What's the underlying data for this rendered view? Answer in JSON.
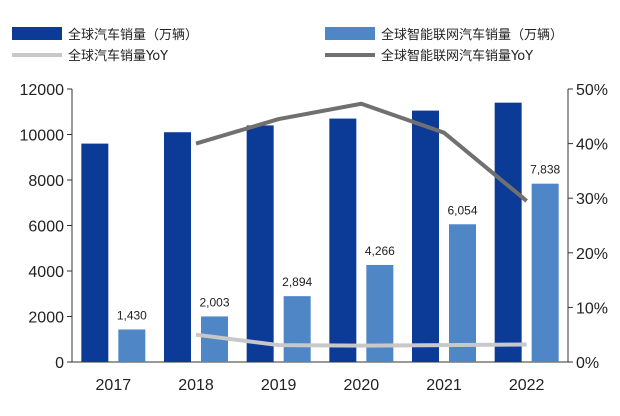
{
  "chart_data": {
    "type": "bar+line",
    "categories": [
      "2017",
      "2018",
      "2019",
      "2020",
      "2021",
      "2022"
    ],
    "series": [
      {
        "name": "全球汽车销量（万辆）",
        "kind": "bar",
        "axis": "left",
        "color": "#0b3b97",
        "values": [
          9600,
          10100,
          10400,
          10700,
          11050,
          11400
        ]
      },
      {
        "name": "全球智能联网汽车销量（万辆）",
        "kind": "bar",
        "axis": "left",
        "color": "#4f86c6",
        "values": [
          1430,
          2003,
          2894,
          4266,
          6054,
          7838
        ],
        "labels": [
          "1,430",
          "2,003",
          "2,894",
          "4,266",
          "6,054",
          "7,838"
        ]
      },
      {
        "name": "全球汽车销量YoY",
        "kind": "line",
        "axis": "right",
        "color": "#c8c8c8",
        "values": [
          null,
          5.0,
          3.1,
          3.0,
          3.1,
          3.2
        ]
      },
      {
        "name": "全球智能联网汽车销量YoY",
        "kind": "line",
        "axis": "right",
        "color": "#707070",
        "values": [
          null,
          40.0,
          44.5,
          47.3,
          42.0,
          29.5
        ]
      }
    ],
    "left_axis": {
      "min": 0,
      "max": 12000,
      "ticks": [
        "0",
        "2000",
        "4000",
        "6000",
        "8000",
        "10000",
        "12000"
      ]
    },
    "right_axis": {
      "min": 0,
      "max": 50,
      "ticks": [
        "0%",
        "10%",
        "20%",
        "30%",
        "40%",
        "50%"
      ]
    },
    "legend_position": "top"
  }
}
